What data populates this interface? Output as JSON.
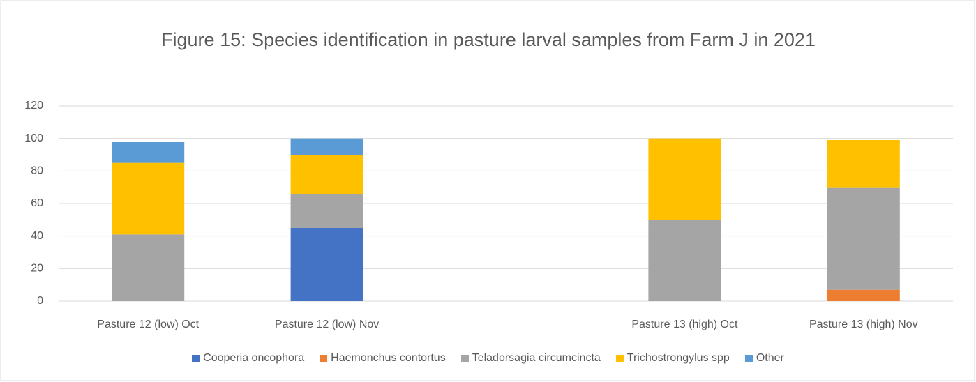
{
  "chart_data": {
    "type": "stacked-bar",
    "title": "Figure 15: Species identification in pasture larval samples from Farm J in 2021",
    "categories": [
      "Pasture 12 (low) Oct",
      "Pasture 12 (low) Nov",
      null,
      "Pasture 13 (high) Oct",
      "Pasture 13 (high) Nov"
    ],
    "series": [
      {
        "name": "Cooperia oncophora",
        "color": "#4472c4",
        "values": [
          0,
          45,
          null,
          0,
          0
        ]
      },
      {
        "name": "Haemonchus contortus",
        "color": "#ed7d31",
        "values": [
          0,
          0,
          null,
          0,
          7
        ]
      },
      {
        "name": "Teladorsagia circumcincta",
        "color": "#a5a5a5",
        "values": [
          41,
          21,
          null,
          50,
          63
        ]
      },
      {
        "name": "Trichostrongylus spp",
        "color": "#ffc000",
        "values": [
          44,
          24,
          null,
          50,
          29
        ]
      },
      {
        "name": "Other",
        "color": "#5b9bd5",
        "values": [
          13,
          10,
          null,
          0,
          0
        ]
      }
    ],
    "ylim": [
      0,
      120
    ],
    "yticks": [
      0,
      20,
      40,
      60,
      80,
      100,
      120
    ],
    "grid": true,
    "legend": "bottom"
  }
}
